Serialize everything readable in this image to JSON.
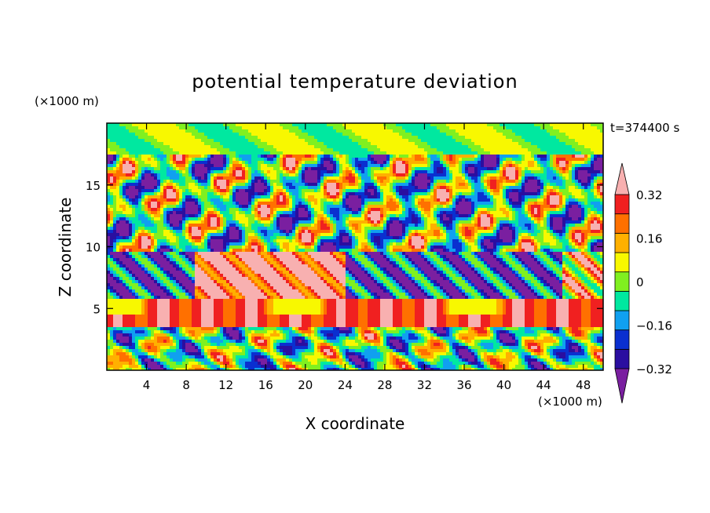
{
  "chart_data": {
    "type": "heatmap",
    "title": "potential temperature deviation",
    "xlabel": "X coordinate",
    "ylabel": "Z coordinate",
    "x_unit": "(×1000 m)",
    "y_unit": "(×1000 m)",
    "time_label": "t=374400 s",
    "xlim": [
      0,
      50
    ],
    "ylim": [
      0,
      20
    ],
    "x_ticks": [
      4,
      8,
      12,
      16,
      20,
      24,
      28,
      32,
      36,
      40,
      44,
      48
    ],
    "y_ticks": [
      5,
      10,
      15
    ],
    "colorbar": {
      "levels": [
        -0.4,
        -0.32,
        -0.24,
        -0.16,
        -0.08,
        0,
        0.08,
        0.16,
        0.24,
        0.32,
        0.4
      ],
      "labels": [
        "0.32",
        "0.16",
        "0",
        "−0.16",
        "−0.32"
      ],
      "label_values": [
        0.32,
        0.16,
        0,
        -0.16,
        -0.32
      ],
      "colors_low_to_high": [
        "#7a1fa0",
        "#2a0ea0",
        "#0a2fd0",
        "#10a0f0",
        "#00e8a0",
        "#80f020",
        "#f8f800",
        "#ffb000",
        "#ff7000",
        "#f02020",
        "#f8b0b0"
      ]
    }
  }
}
